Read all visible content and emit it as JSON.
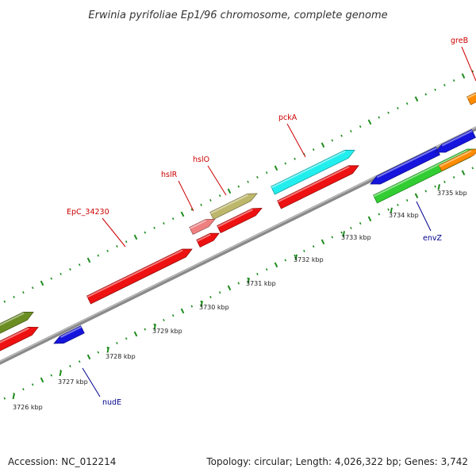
{
  "title": "Erwinia pyrifoliae Ep1/96 chromosome, complete genome",
  "footer": {
    "accession": "Accession: NC_012214",
    "stats": "Topology: circular; Length: 4,026,322 bp; Genes: 3,742"
  },
  "colors": {
    "backbone": "#8a8a8a",
    "tick": "#1e8c1e",
    "forward_label": "#cc0000",
    "reverse_label": "#00008b"
  },
  "kbp_labels": [
    "3726 kbp",
    "3727 kbp",
    "3728 kbp",
    "3729 kbp",
    "3730 kbp",
    "3731 kbp",
    "3732 kbp",
    "3733 kbp",
    "3734 kbp",
    "3735 kbp"
  ],
  "gene_labels": {
    "EpC_34230": "EpC_34230",
    "hslR": "hslR",
    "hslO": "hslO",
    "pckA": "pckA",
    "greB": "greB",
    "envZ": "envZ",
    "nudE": "nudE"
  },
  "features": [
    {
      "name": "olive-feature",
      "color": "#6b8e23"
    },
    {
      "name": "red-feature-left",
      "color": "#ee1111"
    },
    {
      "name": "blue-feature-nudE",
      "color": "#1515dd"
    },
    {
      "name": "red-feature-EpC_34230",
      "color": "#ee1111"
    },
    {
      "name": "pink-feature-hslR",
      "color": "#f08080"
    },
    {
      "name": "red-feature-small",
      "color": "#ee1111"
    },
    {
      "name": "khaki-feature-hslO",
      "color": "#bdb76b"
    },
    {
      "name": "red-feature-hslO-below",
      "color": "#ee1111"
    },
    {
      "name": "cyan-feature-pckA",
      "color": "#22eeee"
    },
    {
      "name": "red-feature-pckA-below",
      "color": "#ee1111"
    },
    {
      "name": "blue-feature-envZ-upper",
      "color": "#1515dd"
    },
    {
      "name": "green-feature-envZ",
      "color": "#32cd32"
    },
    {
      "name": "blue-feature-right",
      "color": "#1515dd"
    },
    {
      "name": "orange-feature-right",
      "color": "#ff8c00"
    },
    {
      "name": "orange-feature-greB",
      "color": "#ff8c00"
    }
  ]
}
